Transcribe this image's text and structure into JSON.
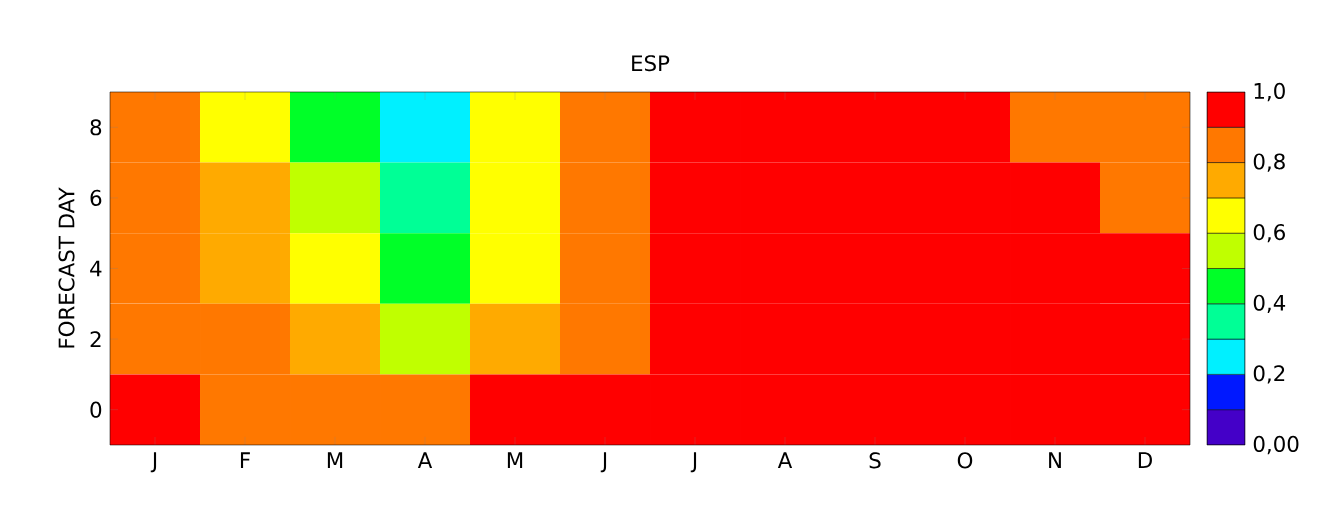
{
  "chart_data": {
    "type": "heatmap",
    "title": "ESP",
    "ylabel": "FORECAST DAY",
    "categories": [
      "J",
      "F",
      "M",
      "A",
      "M",
      "J",
      "J",
      "A",
      "S",
      "O",
      "N",
      "D"
    ],
    "y_categories": [
      "8",
      "6",
      "4",
      "2",
      "0"
    ],
    "cells": [
      [
        0.85,
        0.65,
        0.45,
        0.25,
        0.65,
        0.85,
        0.95,
        0.95,
        0.95,
        0.95,
        0.85,
        0.85
      ],
      [
        0.85,
        0.75,
        0.55,
        0.35,
        0.65,
        0.85,
        0.95,
        0.95,
        0.95,
        0.95,
        0.95,
        0.85
      ],
      [
        0.85,
        0.75,
        0.65,
        0.45,
        0.65,
        0.85,
        0.95,
        0.95,
        0.95,
        0.95,
        0.95,
        0.95
      ],
      [
        0.85,
        0.85,
        0.75,
        0.55,
        0.75,
        0.85,
        0.95,
        0.95,
        0.95,
        0.95,
        0.95,
        0.95
      ],
      [
        0.95,
        0.85,
        0.85,
        0.85,
        0.95,
        0.95,
        0.95,
        0.95,
        0.95,
        0.95,
        0.95,
        0.95
      ]
    ],
    "clim": [
      0,
      1
    ],
    "cticks": [
      {
        "value": 0,
        "label": "0,00"
      },
      {
        "value": 0.2,
        "label": "0,2"
      },
      {
        "value": 0.4,
        "label": "0,4"
      },
      {
        "value": 0.6,
        "label": "0,6"
      },
      {
        "value": 0.8,
        "label": "0,8"
      },
      {
        "value": 1,
        "label": "1,0"
      }
    ]
  }
}
